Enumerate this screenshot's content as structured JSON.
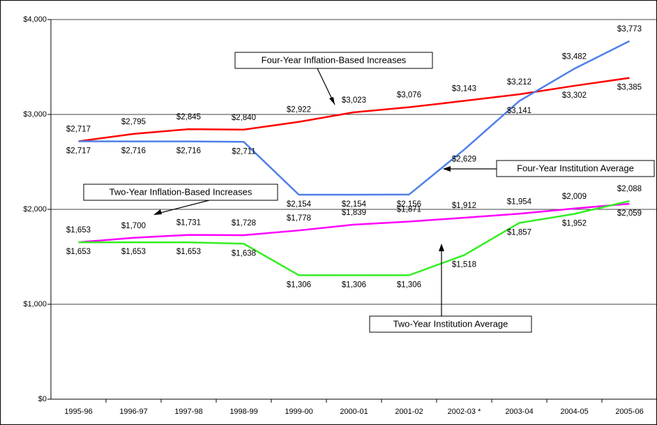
{
  "chart_data": {
    "type": "line",
    "categories": [
      "1995-96",
      "1996-97",
      "1997-98",
      "1998-99",
      "1999-00",
      "2000-01",
      "2001-02",
      "2002-03 *",
      "2003-04",
      "2004-05",
      "2005-06"
    ],
    "series": [
      {
        "name": "Four-Year Inflation-Based Increases",
        "color": "#ff0000",
        "values": [
          2717,
          2795,
          2845,
          2840,
          2922,
          3023,
          3076,
          3143,
          3212,
          3302,
          3385
        ],
        "value_labels": [
          "$2,717",
          "$2,795",
          "$2,845",
          "$2,840",
          "$2,922",
          "$3,023",
          "$3,076",
          "$3,143",
          "$3,212",
          "$3,302",
          "$3,385"
        ]
      },
      {
        "name": "Four-Year Institution Average",
        "color": "#4f7fe8",
        "values": [
          2717,
          2716,
          2716,
          2711,
          2154,
          2154,
          2156,
          2629,
          3141,
          3482,
          3773
        ],
        "value_labels": [
          "$2,717",
          "$2,716",
          "$2,716",
          "$2,711",
          "$2,154",
          "$2,154",
          "$2,156",
          "$2,629",
          "$3,141",
          "$3,482",
          "$3,773"
        ]
      },
      {
        "name": "Two-Year Inflation-Based Increases",
        "color": "#ff00ff",
        "values": [
          1653,
          1700,
          1731,
          1728,
          1778,
          1839,
          1871,
          1912,
          1954,
          2009,
          2059
        ],
        "value_labels": [
          "$1,653",
          "$1,700",
          "$1,731",
          "$1,728",
          "$1,778",
          "$1,839",
          "$1,871",
          "$1,912",
          "$1,954",
          "$2,009",
          "$2,059"
        ]
      },
      {
        "name": "Two-Year Institution Average",
        "color": "#33ee22",
        "values": [
          1653,
          1653,
          1653,
          1638,
          1306,
          1306,
          1306,
          1518,
          1857,
          1952,
          2088
        ],
        "value_labels": [
          "$1,653",
          "$1,653",
          "$1,653",
          "$1,638",
          "$1,306",
          "$1,306",
          "$1,306",
          "$1,518",
          "$1,857",
          "$1,952",
          "$2,088"
        ]
      }
    ],
    "ylim": [
      0,
      4000
    ],
    "yticks": [
      {
        "value": 0,
        "label": "$0"
      },
      {
        "value": 1000,
        "label": "$1,000"
      },
      {
        "value": 2000,
        "label": "$2,000"
      },
      {
        "value": 3000,
        "label": "$3,000"
      },
      {
        "value": 4000,
        "label": "$4,000"
      }
    ],
    "grid": true
  }
}
